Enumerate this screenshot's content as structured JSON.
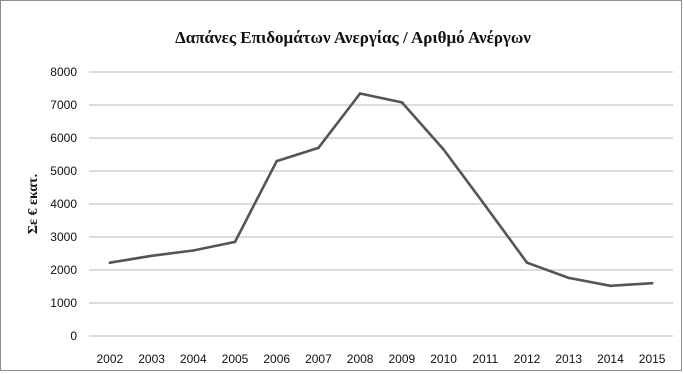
{
  "chart_data": {
    "type": "line",
    "title": "Δαπάνες Επιδομάτων Ανεργίας / Αριθμό Ανέργων",
    "xlabel": "",
    "ylabel": "Σε € εκατ.",
    "categories": [
      "2002",
      "2003",
      "2004",
      "2005",
      "2006",
      "2007",
      "2008",
      "2009",
      "2010",
      "2011",
      "2012",
      "2013",
      "2014",
      "2015"
    ],
    "series": [
      {
        "values": [
          2220,
          2430,
          2590,
          2850,
          5300,
          5700,
          7350,
          7080,
          5650,
          3950,
          2220,
          1760,
          1520,
          1600
        ]
      }
    ],
    "ylim": [
      0,
      8000
    ],
    "yticks": [
      "0",
      "1000",
      "2000",
      "3000",
      "4000",
      "5000",
      "6000",
      "7000",
      "8000"
    ],
    "grid": true,
    "legend": "none",
    "colors": {
      "line": "#555555",
      "grid": "#b8b8b8"
    }
  }
}
